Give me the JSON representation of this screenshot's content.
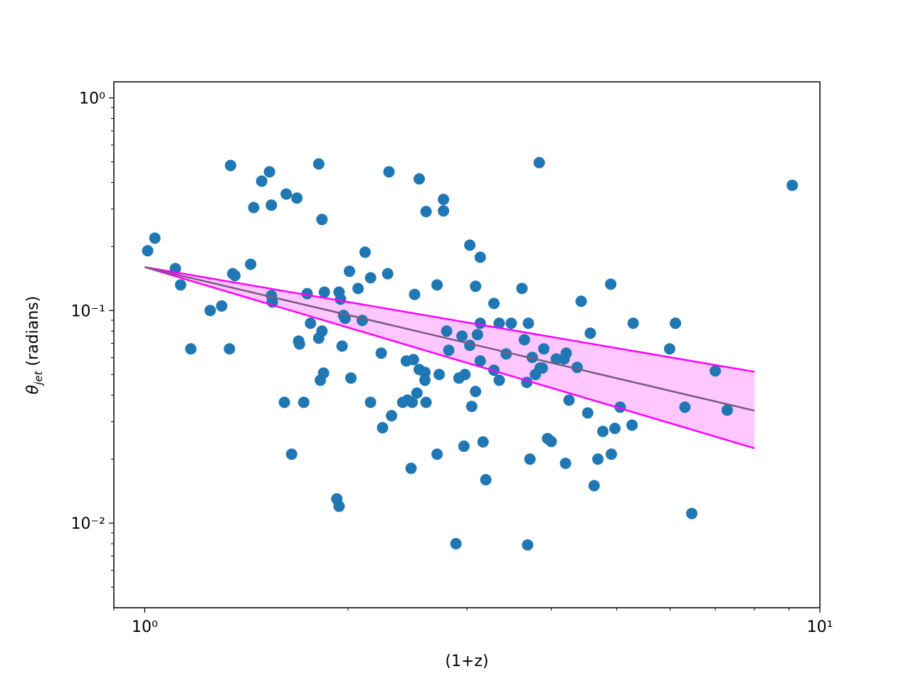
{
  "chart_data": {
    "type": "scatter",
    "xlabel": "(1+z)",
    "ylabel": {
      "symbol": "θ",
      "subscript": "jet",
      "text": "(radians)"
    },
    "log_x": true,
    "log_y": true,
    "xlim": [
      0.9,
      10
    ],
    "ylim": [
      0.004,
      1.19
    ],
    "xticks": [
      {
        "value": 1,
        "label": "10⁰"
      },
      {
        "value": 10,
        "label": "10¹"
      }
    ],
    "yticks": [
      {
        "value": 0.01,
        "label": "10⁻²"
      },
      {
        "value": 0.1,
        "label": "10⁻¹"
      },
      {
        "value": 1,
        "label": "10⁰"
      }
    ],
    "xminorticks": [
      0.9,
      2,
      3,
      4,
      5,
      6,
      7,
      8,
      9
    ],
    "yminorticks": [
      0.005,
      0.006,
      0.007,
      0.008,
      0.009,
      0.02,
      0.03,
      0.04,
      0.05,
      0.06,
      0.07,
      0.08,
      0.09,
      0.2,
      0.3,
      0.4,
      0.5,
      0.6,
      0.7,
      0.8,
      0.9
    ],
    "color": "#1f77b4",
    "x": [
      1.01,
      1.035,
      1.11,
      1.13,
      1.17,
      1.25,
      1.3,
      1.335,
      1.34,
      1.35,
      1.36,
      1.435,
      1.45,
      1.49,
      1.53,
      1.54,
      1.54,
      1.545,
      1.61,
      1.62,
      1.65,
      1.68,
      1.69,
      1.695,
      1.72,
      1.74,
      1.76,
      1.81,
      1.81,
      1.82,
      1.83,
      1.83,
      1.84,
      1.845,
      1.925,
      1.94,
      1.94,
      1.95,
      1.96,
      1.97,
      1.98,
      2.01,
      2.02,
      2.07,
      2.1,
      2.12,
      2.16,
      2.16,
      2.24,
      2.25,
      2.29,
      2.3,
      2.32,
      2.41,
      2.44,
      2.45,
      2.48,
      2.49,
      2.5,
      2.51,
      2.53,
      2.55,
      2.55,
      2.6,
      2.6,
      2.61,
      2.61,
      2.71,
      2.71,
      2.73,
      2.77,
      2.77,
      2.8,
      2.82,
      2.89,
      2.92,
      2.95,
      2.97,
      2.98,
      3.03,
      3.03,
      3.05,
      3.09,
      3.09,
      3.11,
      3.14,
      3.14,
      3.14,
      3.17,
      3.2,
      3.29,
      3.29,
      3.35,
      3.35,
      3.43,
      3.49,
      3.62,
      3.65,
      3.68,
      3.69,
      3.7,
      3.72,
      3.75,
      3.79,
      3.84,
      3.85,
      3.88,
      3.9,
      3.95,
      4.0,
      4.07,
      4.18,
      4.2,
      4.21,
      4.25,
      4.37,
      4.43,
      4.53,
      4.57,
      4.63,
      4.69,
      4.77,
      4.9,
      4.91,
      4.97,
      5.06,
      5.27,
      5.29,
      5.99,
      6.11,
      6.31,
      6.46,
      7.0,
      7.29,
      9.1
    ],
    "values": [
      0.191,
      0.219,
      0.1575,
      0.132,
      0.066,
      0.1,
      0.105,
      0.066,
      0.481,
      0.149,
      0.146,
      0.165,
      0.305,
      0.406,
      0.449,
      0.313,
      0.1175,
      0.1097,
      0.037,
      0.353,
      0.0211,
      0.338,
      0.0718,
      0.0696,
      0.037,
      0.12,
      0.0871,
      0.489,
      0.0741,
      0.047,
      0.08,
      0.268,
      0.0508,
      0.122,
      0.013,
      0.012,
      0.122,
      0.113,
      0.068,
      0.0948,
      0.0919,
      0.153,
      0.0481,
      0.127,
      0.0898,
      0.188,
      0.1425,
      0.037,
      0.063,
      0.0281,
      0.149,
      0.449,
      0.032,
      0.037,
      0.0579,
      0.0379,
      0.0181,
      0.037,
      0.0588,
      0.119,
      0.0409,
      0.416,
      0.0528,
      0.047,
      0.0512,
      0.037,
      0.292,
      0.0211,
      0.132,
      0.05,
      0.294,
      0.333,
      0.08,
      0.065,
      0.008,
      0.0481,
      0.0758,
      0.023,
      0.05,
      0.203,
      0.0686,
      0.0354,
      0.13,
      0.0416,
      0.077,
      0.178,
      0.0871,
      0.0579,
      0.0241,
      0.016,
      0.0524,
      0.108,
      0.047,
      0.0871,
      0.0625,
      0.0871,
      0.127,
      0.0729,
      0.0459,
      0.0079,
      0.0871,
      0.02,
      0.0602,
      0.05,
      0.496,
      0.0536,
      0.0536,
      0.066,
      0.025,
      0.0242,
      0.0592,
      0.0592,
      0.0191,
      0.063,
      0.0379,
      0.054,
      0.1105,
      0.033,
      0.0782,
      0.015,
      0.02,
      0.027,
      0.133,
      0.0211,
      0.0279,
      0.0351,
      0.0289,
      0.0871,
      0.066,
      0.0871,
      0.0351,
      0.0111,
      0.052,
      0.034,
      0.388
    ],
    "fit": {
      "x": [
        1,
        8
      ],
      "values": [
        0.16,
        0.0338
      ],
      "color": "#7a5a80"
    },
    "band": {
      "x": [
        1,
        8
      ],
      "upper": [
        0.16,
        0.0515
      ],
      "lower": [
        0.16,
        0.0225
      ],
      "color": "#ff00ff"
    }
  }
}
